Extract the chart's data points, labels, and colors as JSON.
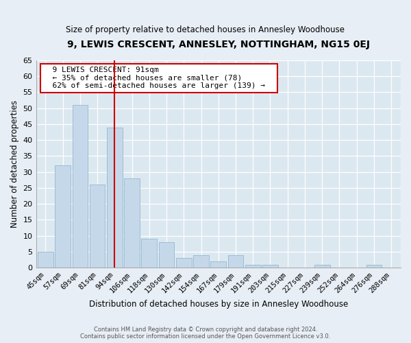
{
  "title": "9, LEWIS CRESCENT, ANNESLEY, NOTTINGHAM, NG15 0EJ",
  "subtitle": "Size of property relative to detached houses in Annesley Woodhouse",
  "xlabel": "Distribution of detached houses by size in Annesley Woodhouse",
  "ylabel": "Number of detached properties",
  "bar_labels": [
    "45sqm",
    "57sqm",
    "69sqm",
    "81sqm",
    "94sqm",
    "106sqm",
    "118sqm",
    "130sqm",
    "142sqm",
    "154sqm",
    "167sqm",
    "179sqm",
    "191sqm",
    "203sqm",
    "215sqm",
    "227sqm",
    "239sqm",
    "252sqm",
    "264sqm",
    "276sqm",
    "288sqm"
  ],
  "bar_values": [
    5,
    32,
    51,
    26,
    44,
    28,
    9,
    8,
    3,
    4,
    2,
    4,
    1,
    1,
    0,
    0,
    1,
    0,
    0,
    1,
    0
  ],
  "bar_color": "#c5d8ea",
  "bar_edge_color": "#9bbdd4",
  "vline_x": 4.0,
  "vline_color": "#cc0000",
  "annotation_title": "9 LEWIS CRESCENT: 91sqm",
  "annotation_line1": "← 35% of detached houses are smaller (78)",
  "annotation_line2": "62% of semi-detached houses are larger (139) →",
  "annotation_box_color": "#ffffff",
  "annotation_box_edge": "#cc0000",
  "ylim": [
    0,
    65
  ],
  "yticks": [
    0,
    5,
    10,
    15,
    20,
    25,
    30,
    35,
    40,
    45,
    50,
    55,
    60,
    65
  ],
  "background_color": "#e8eef5",
  "plot_background": "#dce8f0",
  "grid_color": "#c0cfe0",
  "footer_line1": "Contains HM Land Registry data © Crown copyright and database right 2024.",
  "footer_line2": "Contains public sector information licensed under the Open Government Licence v3.0."
}
